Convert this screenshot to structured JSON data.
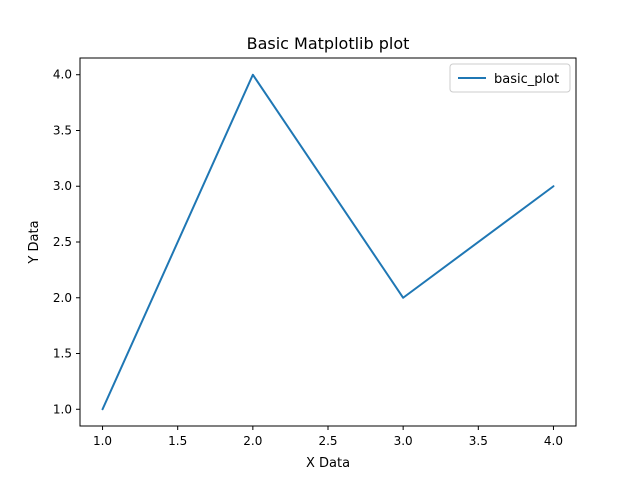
{
  "chart_data": {
    "type": "line",
    "title": "Basic Matplotlib plot",
    "xlabel": "X Data",
    "ylabel": "Y Data",
    "x": [
      1.0,
      2.0,
      3.0,
      4.0
    ],
    "series": [
      {
        "name": "basic_plot",
        "values": [
          1.0,
          4.0,
          2.0,
          3.0
        ],
        "color": "#1f77b4"
      }
    ],
    "xlim": [
      0.85,
      4.15
    ],
    "ylim": [
      0.85,
      4.15
    ],
    "xticks": [
      "1.0",
      "1.5",
      "2.0",
      "2.5",
      "3.0",
      "3.5",
      "4.0"
    ],
    "yticks": [
      "1.0",
      "1.5",
      "2.0",
      "2.5",
      "3.0",
      "3.5",
      "4.0"
    ],
    "grid": false,
    "legend_position": "upper right"
  }
}
